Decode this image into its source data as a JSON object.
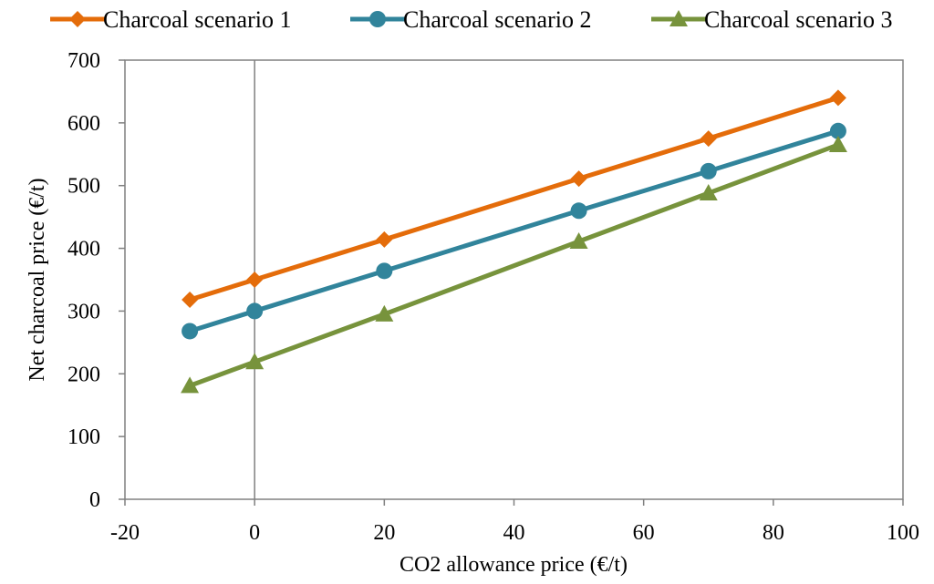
{
  "chart_data": {
    "type": "line",
    "title": "",
    "xlabel": "CO2 allowance price (€/t)",
    "ylabel": "Net charcoal price (€/t)",
    "xlim": [
      -20,
      100
    ],
    "ylim": [
      0,
      700
    ],
    "x_ticks": [
      -20,
      0,
      20,
      40,
      60,
      80,
      100
    ],
    "y_ticks": [
      0,
      100,
      200,
      300,
      400,
      500,
      600,
      700
    ],
    "grid": false,
    "legend_position": "top",
    "series": [
      {
        "name": "Charcoal scenario 1",
        "color": "#E46C0A",
        "marker": "diamond",
        "x": [
          -10,
          0,
          20,
          50,
          70,
          90
        ],
        "y": [
          318,
          350,
          414,
          511,
          575,
          640
        ]
      },
      {
        "name": "Charcoal scenario 2",
        "color": "#31849B",
        "marker": "circle",
        "x": [
          -10,
          0,
          20,
          50,
          70,
          90
        ],
        "y": [
          268,
          300,
          364,
          460,
          523,
          587
        ]
      },
      {
        "name": "Charcoal scenario 3",
        "color": "#77933C",
        "marker": "triangle",
        "x": [
          -10,
          0,
          20,
          50,
          70,
          90
        ],
        "y": [
          181,
          219,
          295,
          411,
          488,
          565
        ]
      }
    ]
  }
}
